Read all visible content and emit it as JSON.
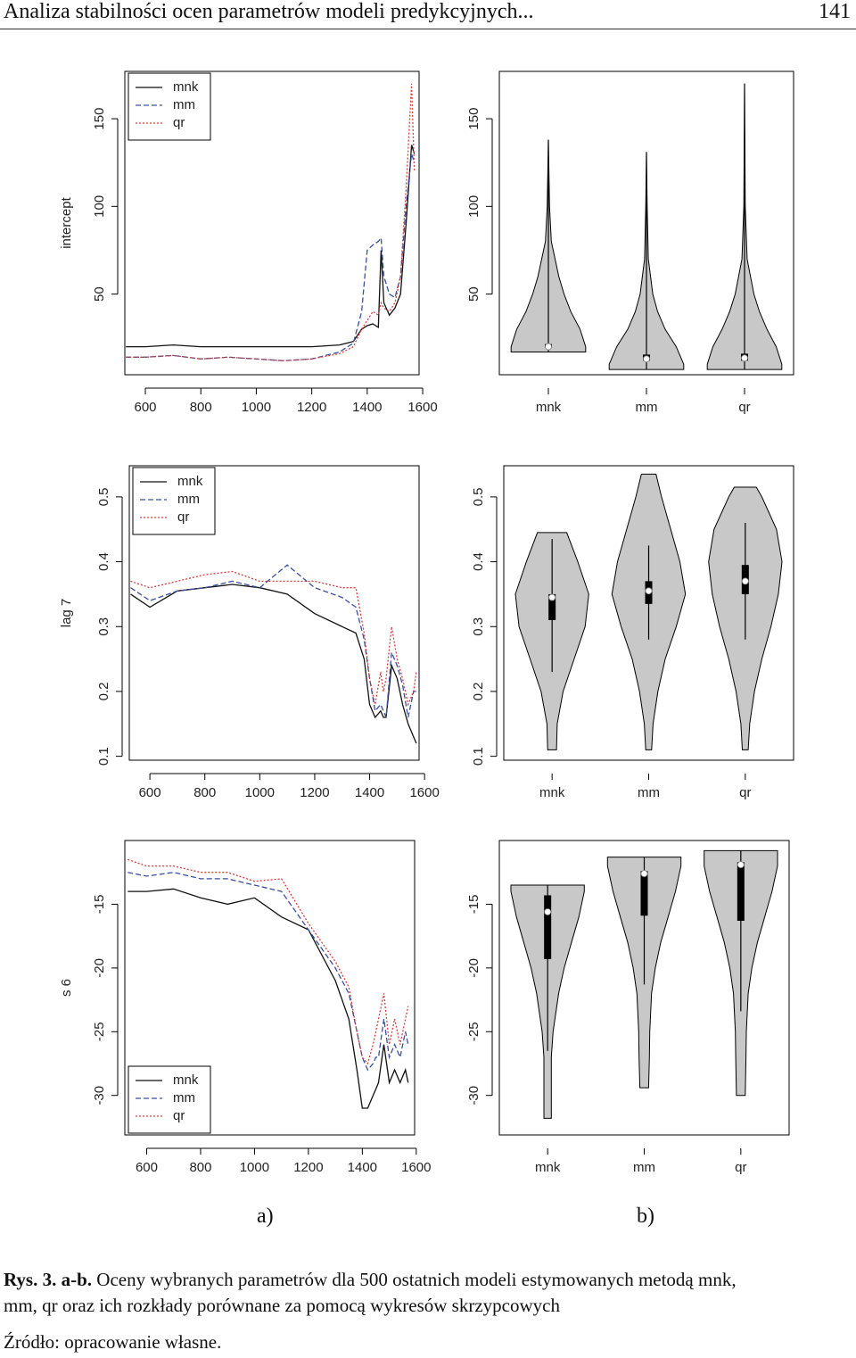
{
  "header": {
    "title": "Analiza stabilności ocen parametrów modeli predykcyjnych...",
    "page": "141"
  },
  "panel_labels": [
    "a)",
    "b)"
  ],
  "caption": {
    "label": "Rys. 3. a-b.",
    "text": "Oceny wybranych parametrów dla 500 ostatnich modeli estymowanych metodą mnk, mm, qr oraz ich rozkłady porównane za pomocą wykresów skrzypcowych",
    "source": "Źródło: opracowanie własne."
  },
  "chart_data": [
    {
      "type": "line",
      "ylabel": "intercept",
      "legend": "topleft",
      "x": [
        530,
        600,
        700,
        800,
        900,
        1000,
        1100,
        1200,
        1300,
        1350,
        1380,
        1400,
        1420,
        1440,
        1450,
        1460,
        1480,
        1500,
        1520,
        1540,
        1560,
        1570
      ],
      "xlim": [
        526,
        1587
      ],
      "xticks": [
        600,
        800,
        1000,
        1200,
        1400,
        1600
      ],
      "ylim": [
        4,
        177
      ],
      "yticks": [
        50,
        100,
        150
      ],
      "series": [
        {
          "name": "mnk",
          "color": "#111111",
          "linestyle": "solid",
          "values": [
            20,
            20,
            21,
            20,
            20,
            20,
            20,
            20,
            21,
            23,
            30,
            32,
            33,
            31,
            75,
            45,
            38,
            42,
            50,
            90,
            135,
            130
          ]
        },
        {
          "name": "mm",
          "color": "#3a4fa0",
          "linestyle": "dashed",
          "values": [
            14,
            14,
            15,
            13,
            14,
            13,
            12,
            13,
            17,
            22,
            40,
            75,
            78,
            80,
            82,
            60,
            50,
            48,
            60,
            100,
            130,
            125
          ]
        },
        {
          "name": "qr",
          "color": "#d04040",
          "linestyle": "dotted",
          "values": [
            14,
            14,
            15,
            13,
            14,
            13,
            12,
            13,
            16,
            20,
            30,
            35,
            40,
            38,
            45,
            42,
            40,
            45,
            60,
            110,
            170,
            120
          ]
        }
      ]
    },
    {
      "type": "violin",
      "ylim": [
        4,
        177
      ],
      "yticks": [
        50,
        100,
        150
      ],
      "categories": [
        "mnk",
        "mm",
        "qr"
      ],
      "violins": [
        {
          "min": 17,
          "q1": 19.5,
          "median": 20,
          "q3": 21.5,
          "max": 138,
          "profile_y": [
            17,
            20,
            30,
            40,
            50,
            60,
            80,
            100,
            138
          ],
          "profile_width": [
            1,
            1,
            0.85,
            0.6,
            0.42,
            0.28,
            0.08,
            0.03,
            0
          ]
        },
        {
          "min": 7,
          "q1": 12,
          "median": 13,
          "q3": 15.5,
          "max": 131,
          "profile_y": [
            7,
            10,
            20,
            30,
            40,
            50,
            70,
            100,
            131
          ],
          "profile_width": [
            1,
            1,
            0.8,
            0.5,
            0.3,
            0.17,
            0.05,
            0.02,
            0
          ]
        },
        {
          "min": 7,
          "q1": 12,
          "median": 13.5,
          "q3": 16,
          "max": 170,
          "profile_y": [
            7,
            10,
            20,
            30,
            40,
            50,
            70,
            100,
            170
          ],
          "profile_width": [
            1,
            1,
            0.85,
            0.6,
            0.4,
            0.25,
            0.07,
            0.02,
            0
          ]
        }
      ]
    },
    {
      "type": "line",
      "ylabel": "lag 7",
      "legend": "topleft",
      "x": [
        530,
        600,
        700,
        800,
        900,
        1000,
        1100,
        1200,
        1300,
        1350,
        1380,
        1400,
        1420,
        1440,
        1450,
        1460,
        1480,
        1500,
        1520,
        1540,
        1560,
        1570
      ],
      "xlim": [
        525,
        1580
      ],
      "xticks": [
        600,
        800,
        1000,
        1200,
        1400,
        1600
      ],
      "ylim": [
        0.094,
        0.548
      ],
      "yticks": [
        0.1,
        0.2,
        0.3,
        0.4,
        0.5
      ],
      "series": [
        {
          "name": "mnk",
          "color": "#111111",
          "linestyle": "solid",
          "values": [
            0.35,
            0.33,
            0.355,
            0.36,
            0.365,
            0.36,
            0.35,
            0.32,
            0.3,
            0.29,
            0.25,
            0.18,
            0.16,
            0.17,
            0.16,
            0.16,
            0.24,
            0.22,
            0.18,
            0.15,
            0.13,
            0.12
          ]
        },
        {
          "name": "mm",
          "color": "#3a4fa0",
          "linestyle": "dashed",
          "values": [
            0.36,
            0.34,
            0.355,
            0.36,
            0.37,
            0.36,
            0.395,
            0.36,
            0.345,
            0.33,
            0.28,
            0.22,
            0.17,
            0.18,
            0.17,
            0.16,
            0.26,
            0.24,
            0.21,
            0.16,
            0.2,
            0.2
          ]
        },
        {
          "name": "qr",
          "color": "#d04040",
          "linestyle": "dotted",
          "values": [
            0.37,
            0.36,
            0.37,
            0.38,
            0.385,
            0.37,
            0.37,
            0.37,
            0.36,
            0.36,
            0.29,
            0.22,
            0.18,
            0.23,
            0.2,
            0.22,
            0.3,
            0.25,
            0.22,
            0.18,
            0.2,
            0.23
          ]
        }
      ]
    },
    {
      "type": "violin",
      "ylim": [
        0.094,
        0.548
      ],
      "yticks": [
        0.1,
        0.2,
        0.3,
        0.4,
        0.5
      ],
      "categories": [
        "mnk",
        "mm",
        "qr"
      ],
      "violins": [
        {
          "min": 0.23,
          "q1": 0.31,
          "median": 0.345,
          "q3": 0.35,
          "max": 0.435,
          "profile_y": [
            0.11,
            0.15,
            0.2,
            0.25,
            0.3,
            0.35,
            0.4,
            0.445
          ],
          "profile_width": [
            0.12,
            0.14,
            0.3,
            0.6,
            0.9,
            1,
            0.7,
            0.4
          ]
        },
        {
          "min": 0.28,
          "q1": 0.335,
          "median": 0.355,
          "q3": 0.37,
          "max": 0.425,
          "profile_y": [
            0.11,
            0.15,
            0.2,
            0.25,
            0.3,
            0.35,
            0.4,
            0.45,
            0.5,
            0.535
          ],
          "profile_width": [
            0.08,
            0.12,
            0.25,
            0.45,
            0.75,
            1,
            0.85,
            0.6,
            0.35,
            0.2
          ]
        },
        {
          "min": 0.28,
          "q1": 0.35,
          "median": 0.37,
          "q3": 0.395,
          "max": 0.46,
          "profile_y": [
            0.11,
            0.15,
            0.2,
            0.25,
            0.3,
            0.35,
            0.4,
            0.45,
            0.5,
            0.515
          ],
          "profile_width": [
            0.08,
            0.12,
            0.25,
            0.45,
            0.7,
            0.9,
            1,
            0.85,
            0.45,
            0.3
          ]
        }
      ]
    },
    {
      "type": "line",
      "ylabel": "s 6",
      "legend": "bottomleft",
      "x": [
        530,
        600,
        700,
        800,
        900,
        1000,
        1100,
        1200,
        1300,
        1350,
        1380,
        1400,
        1420,
        1440,
        1450,
        1460,
        1480,
        1500,
        1520,
        1540,
        1560,
        1570
      ],
      "xlim": [
        519,
        1594
      ],
      "xticks": [
        600,
        800,
        1000,
        1200,
        1400,
        1600
      ],
      "ylim": [
        -33.1,
        -10
      ],
      "yticks": [
        -30,
        -25,
        -20,
        -15
      ],
      "series": [
        {
          "name": "mnk",
          "color": "#111111",
          "linestyle": "solid",
          "values": [
            -14,
            -14,
            -13.8,
            -14.5,
            -15,
            -14.5,
            -16,
            -17,
            -21,
            -24,
            -28,
            -31,
            -31,
            -30,
            -29.5,
            -29,
            -26,
            -29,
            -28,
            -29,
            -28,
            -29
          ]
        },
        {
          "name": "mm",
          "color": "#3a4fa0",
          "linestyle": "dashed",
          "values": [
            -12.5,
            -12.8,
            -12.5,
            -13,
            -13,
            -13.5,
            -14,
            -17,
            -20,
            -22,
            -25,
            -27,
            -28,
            -27.5,
            -27,
            -27,
            -24,
            -27,
            -26,
            -27,
            -25,
            -26
          ]
        },
        {
          "name": "qr",
          "color": "#d04040",
          "linestyle": "dotted",
          "values": [
            -11.5,
            -12,
            -12,
            -12.5,
            -12.5,
            -13.2,
            -13,
            -16.5,
            -19.5,
            -21.5,
            -25,
            -27,
            -27.5,
            -26,
            -25,
            -24,
            -22,
            -26,
            -24,
            -26,
            -24,
            -23
          ]
        }
      ]
    },
    {
      "type": "violin",
      "ylim": [
        -33.1,
        -10
      ],
      "yticks": [
        -30,
        -25,
        -20,
        -15
      ],
      "categories": [
        "mnk",
        "mm",
        "qr"
      ],
      "violins": [
        {
          "min": -26.5,
          "q1": -19.3,
          "median": -15.6,
          "q3": -14.3,
          "max": -13.5,
          "profile_y": [
            -31.8,
            -30,
            -27,
            -25,
            -22,
            -20,
            -18,
            -16,
            -14,
            -13.5
          ],
          "profile_width": [
            0.1,
            0.1,
            0.1,
            0.15,
            0.3,
            0.45,
            0.65,
            0.85,
            1,
            1
          ]
        },
        {
          "min": -21.3,
          "q1": -15.9,
          "median": -12.6,
          "q3": -12.4,
          "max": -11.3,
          "profile_y": [
            -29.4,
            -27,
            -25,
            -22,
            -20,
            -18,
            -16,
            -14,
            -12,
            -11.3
          ],
          "profile_width": [
            0.12,
            0.14,
            0.15,
            0.2,
            0.3,
            0.45,
            0.65,
            0.85,
            1,
            1
          ]
        },
        {
          "min": -23.4,
          "q1": -16.3,
          "median": -11.9,
          "q3": -11.7,
          "max": -10.8,
          "profile_y": [
            -30,
            -27,
            -25,
            -22,
            -20,
            -18,
            -16,
            -14,
            -12,
            -10.8
          ],
          "profile_width": [
            0.12,
            0.14,
            0.15,
            0.2,
            0.3,
            0.45,
            0.65,
            0.85,
            1,
            1
          ]
        }
      ]
    }
  ]
}
